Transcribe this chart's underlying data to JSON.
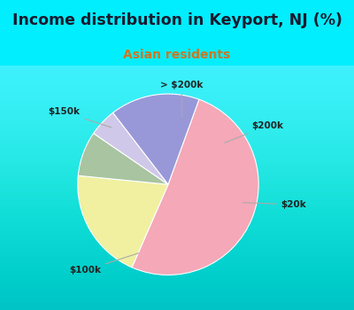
{
  "title": "Income distribution in Keyport, NJ (%)",
  "subtitle": "Asian residents",
  "title_color": "#1a1a2e",
  "subtitle_color": "#cc7722",
  "bg_top_color": "#00eeff",
  "chart_bg": "#e8f5ee",
  "slices": [
    {
      "label": "$100k",
      "value": 51,
      "color": "#f4a8b8"
    },
    {
      "label": "$20k",
      "value": 20,
      "color": "#f0f0a0"
    },
    {
      "label": "$200k",
      "value": 8,
      "color": "#a8c4a0"
    },
    {
      "label": "> $200k",
      "value": 5,
      "color": "#d0c8e8"
    },
    {
      "label": "$150k",
      "value": 16,
      "color": "#9898d8"
    }
  ],
  "startangle": 70,
  "title_fontsize": 12.5,
  "subtitle_fontsize": 10
}
